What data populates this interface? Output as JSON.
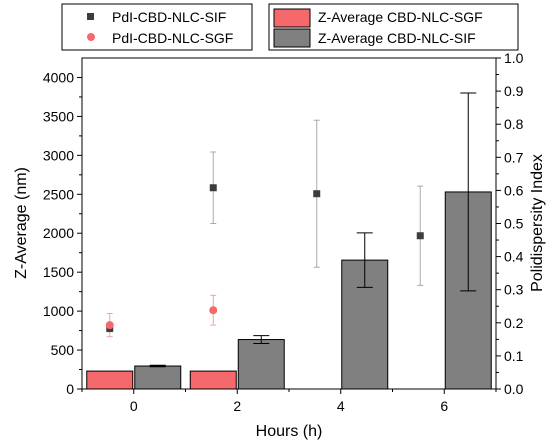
{
  "chart_data": {
    "type": "bar",
    "title": "",
    "xlabel": "Hours (h)",
    "ylabel": "Z-Average (nm)",
    "y2label": "Polidispersity Index",
    "x": [
      0,
      2,
      4,
      6
    ],
    "x_tick_labels": [
      "0",
      "2",
      "4",
      "6"
    ],
    "xlim": [
      -1,
      7
    ],
    "ylim": [
      0,
      4250
    ],
    "y_ticks": [
      0,
      500,
      1000,
      1500,
      2000,
      2500,
      3000,
      3500,
      4000
    ],
    "y2lim": [
      0,
      1.0
    ],
    "y2_ticks": [
      0.0,
      0.1,
      0.2,
      0.3,
      0.4,
      0.5,
      0.6,
      0.7,
      0.8,
      0.9,
      1.0
    ],
    "bar_series": [
      {
        "name": "Z-Average CBD-NLC-SGF",
        "color": "#f5686b",
        "values": [
          230,
          230,
          null,
          null
        ],
        "errors": [
          0,
          0,
          null,
          null
        ]
      },
      {
        "name": "Z-Average CBD-NLC-SIF",
        "color": "#808080",
        "values": [
          295,
          635,
          1655,
          2530
        ],
        "errors": [
          10,
          50,
          350,
          1270
        ]
      }
    ],
    "scatter_series": [
      {
        "name": "PdI-CBD-NLC-SIF",
        "color": "#3d3d3d",
        "marker": "square",
        "axis": "right",
        "values": [
          0.183,
          0.608,
          0.59,
          0.463
        ],
        "errors": [
          0.01,
          0.108,
          0.222,
          0.15
        ]
      },
      {
        "name": "PdI-CBD-NLC-SGF",
        "color": "#f5686b",
        "marker": "circle",
        "axis": "right",
        "values": [
          0.193,
          0.238,
          null,
          null
        ],
        "errors": [
          0.035,
          0.045,
          null,
          null
        ]
      }
    ],
    "legends": [
      {
        "position": "top-left",
        "entries": [
          "PdI-CBD-NLC-SIF",
          "PdI-CBD-NLC-SGF"
        ]
      },
      {
        "position": "top-right",
        "entries": [
          "Z-Average CBD-NLC-SGF",
          "Z-Average CBD-NLC-SIF"
        ]
      }
    ],
    "grid": false
  }
}
